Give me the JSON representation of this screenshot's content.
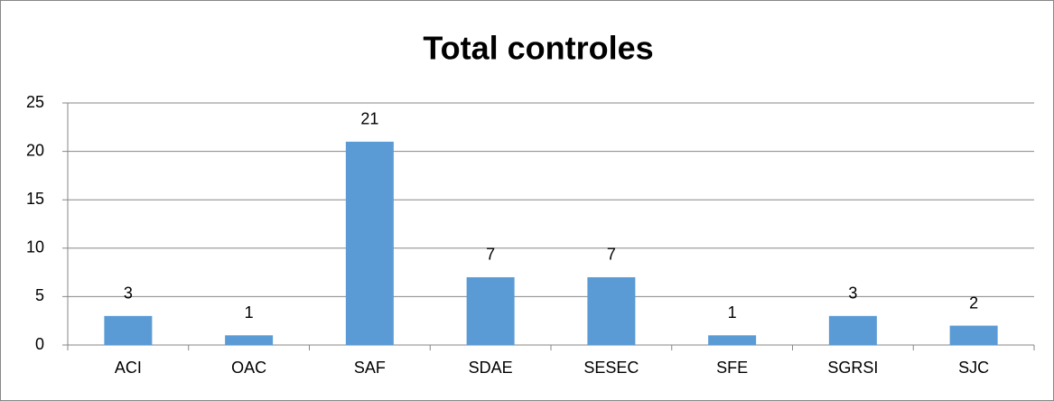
{
  "chart_data": {
    "type": "bar",
    "title": "Total controles",
    "categories": [
      "ACI",
      "OAC",
      "SAF",
      "SDAE",
      "SESEC",
      "SFE",
      "SGRSI",
      "SJC"
    ],
    "values": [
      3,
      1,
      21,
      7,
      7,
      1,
      3,
      2
    ],
    "color": "#5b9bd5",
    "ylim": [
      0,
      25
    ],
    "yticks": [
      0,
      5,
      10,
      15,
      20,
      25
    ],
    "grid": true
  }
}
